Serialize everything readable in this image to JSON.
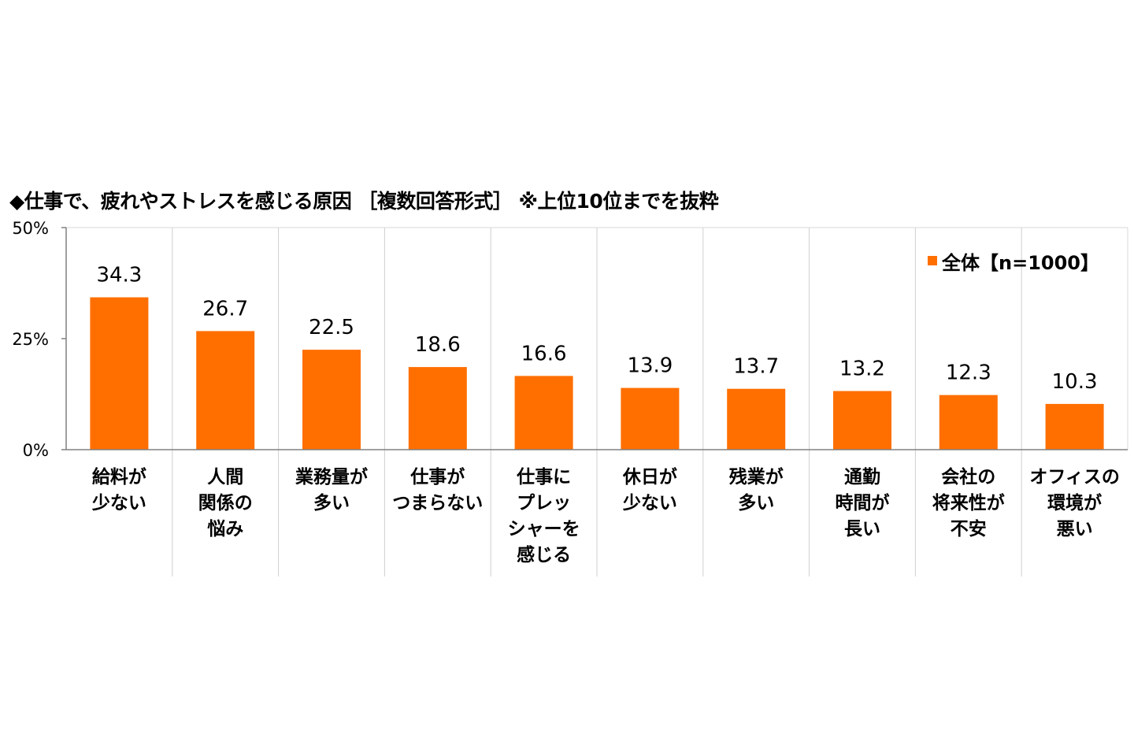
{
  "chart_data": {
    "type": "bar",
    "title": "◆仕事で、疲れやストレスを感じる原因 ［複数回答形式］ ※上位10位までを抜粋",
    "categories": [
      [
        "給料が",
        "少ない"
      ],
      [
        "人間",
        "関係の",
        "悩み"
      ],
      [
        "業務量が",
        "多い"
      ],
      [
        "仕事が",
        "つまらない"
      ],
      [
        "仕事に",
        "プレッ",
        "シャーを",
        "感じる"
      ],
      [
        "休日が",
        "少ない"
      ],
      [
        "残業が",
        "多い"
      ],
      [
        "通勤",
        "時間が",
        "長い"
      ],
      [
        "会社の",
        "将来性が",
        "不安"
      ],
      [
        "オフィスの",
        "環境が",
        "悪い"
      ]
    ],
    "series": [
      {
        "name": "全体【n=1000】",
        "values": [
          34.3,
          26.7,
          22.5,
          18.6,
          16.6,
          13.9,
          13.7,
          13.2,
          12.3,
          10.3
        ],
        "value_labels": [
          "34.3",
          "26.7",
          "22.5",
          "18.6",
          "16.6",
          "13.9",
          "13.7",
          "13.2",
          "12.3",
          "10.3"
        ]
      }
    ],
    "ylim": [
      0,
      50
    ],
    "yticks": [
      0,
      25,
      50
    ],
    "ytick_labels": [
      "0%",
      "25%",
      "50%"
    ],
    "legend_position": "top-right",
    "grid": "vertical category separators",
    "bar_color": "#ff6f00"
  }
}
